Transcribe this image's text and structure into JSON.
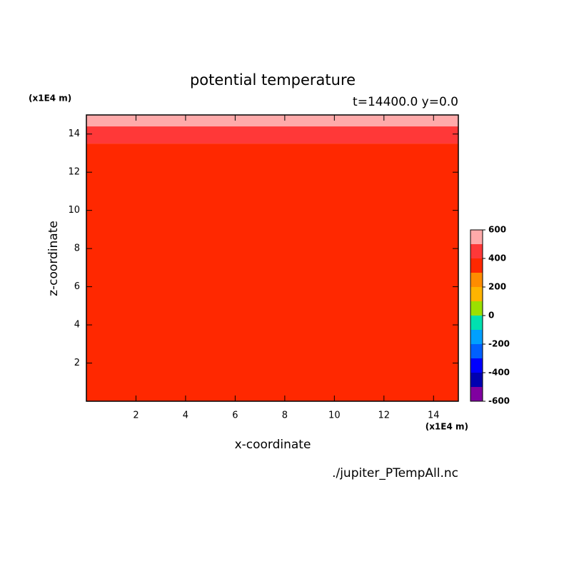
{
  "chart_data": {
    "type": "contour",
    "title": "potential temperature",
    "subtitle": "t=14400.0 y=0.0",
    "xlabel": "x-coordinate",
    "ylabel": "z-coordinate",
    "xunit": "(x1E4 m)",
    "yunit": "(x1E4 m)",
    "source": "./jupiter_PTempAll.nc",
    "xlim": [
      0,
      15
    ],
    "ylim": [
      0,
      15
    ],
    "xticks": [
      2,
      4,
      6,
      8,
      10,
      12,
      14
    ],
    "yticks": [
      2,
      4,
      6,
      8,
      10,
      12,
      14
    ],
    "levels": [
      -600,
      -500,
      -400,
      -300,
      -200,
      -100,
      0,
      100,
      200,
      300,
      400,
      500,
      600
    ],
    "colors": [
      "#8000a0",
      "#0000b0",
      "#0000ff",
      "#0060ff",
      "#00a0ff",
      "#00e0b0",
      "#9be000",
      "#ffb400",
      "#ff8c00",
      "#ff2800",
      "#ff3838",
      "#ffaaaa"
    ],
    "colorbar_ticks": [
      -600,
      -400,
      -200,
      0,
      200,
      400,
      600
    ],
    "z_bins": [
      0,
      13.5,
      14.4,
      15
    ],
    "values": [
      350,
      450,
      550
    ]
  }
}
